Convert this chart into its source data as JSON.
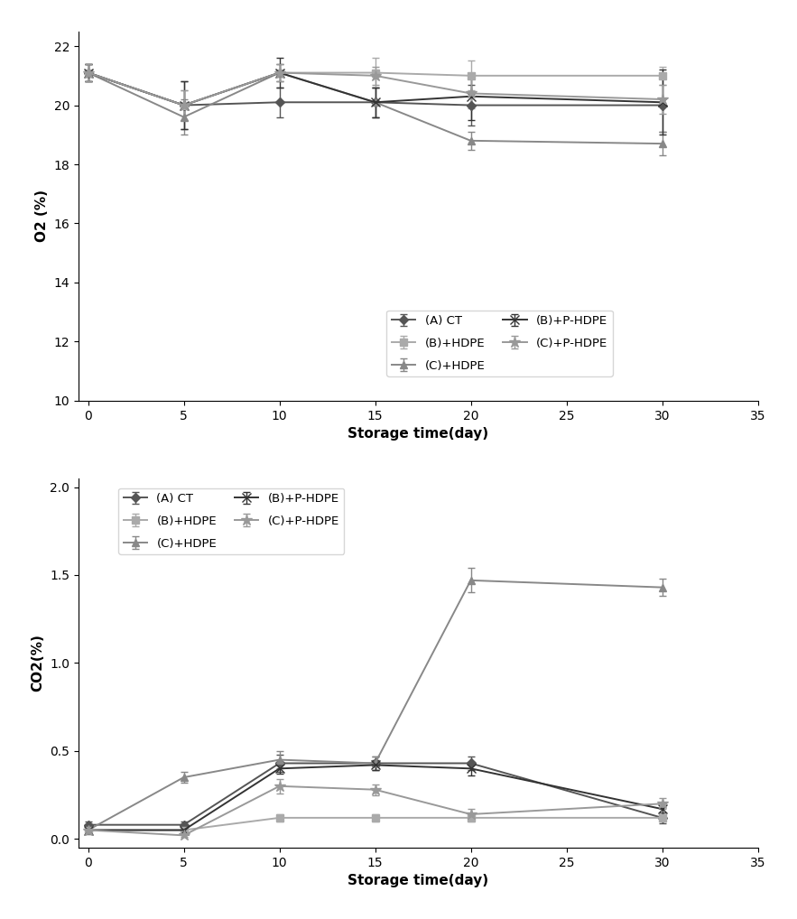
{
  "x": [
    0,
    5,
    10,
    15,
    20,
    30
  ],
  "o2": {
    "CT": [
      21.1,
      20.0,
      20.1,
      20.1,
      20.0,
      20.0
    ],
    "B_HDPE": [
      21.1,
      20.0,
      21.1,
      21.1,
      21.0,
      21.0
    ],
    "C_HDPE": [
      21.1,
      19.6,
      21.1,
      20.1,
      18.8,
      18.7
    ],
    "B_P_HDPE": [
      21.1,
      20.0,
      21.1,
      20.1,
      20.3,
      20.1
    ],
    "C_P_HDPE": [
      21.1,
      20.0,
      21.1,
      21.0,
      20.4,
      20.2
    ]
  },
  "o2_err": {
    "CT": [
      0.3,
      0.8,
      0.5,
      0.5,
      0.7,
      0.9
    ],
    "B_HDPE": [
      0.3,
      0.5,
      0.3,
      0.5,
      0.5,
      0.3
    ],
    "C_HDPE": [
      0.3,
      0.6,
      0.3,
      0.5,
      0.3,
      0.4
    ],
    "B_P_HDPE": [
      0.3,
      0.8,
      0.5,
      0.5,
      0.8,
      1.1
    ],
    "C_P_HDPE": [
      0.3,
      0.5,
      0.3,
      0.3,
      0.5,
      0.5
    ]
  },
  "co2": {
    "CT": [
      0.08,
      0.08,
      0.43,
      0.43,
      0.43,
      0.12
    ],
    "B_HDPE": [
      0.05,
      0.05,
      0.12,
      0.12,
      0.12,
      0.12
    ],
    "C_HDPE": [
      0.05,
      0.35,
      0.45,
      0.43,
      1.47,
      1.43
    ],
    "B_P_HDPE": [
      0.05,
      0.05,
      0.4,
      0.42,
      0.4,
      0.17
    ],
    "C_P_HDPE": [
      0.05,
      0.02,
      0.3,
      0.28,
      0.14,
      0.2
    ]
  },
  "co2_err": {
    "CT": [
      0.02,
      0.02,
      0.05,
      0.04,
      0.04,
      0.03
    ],
    "B_HDPE": [
      0.01,
      0.01,
      0.02,
      0.02,
      0.02,
      0.02
    ],
    "C_HDPE": [
      0.01,
      0.03,
      0.05,
      0.04,
      0.07,
      0.05
    ],
    "B_P_HDPE": [
      0.01,
      0.01,
      0.03,
      0.03,
      0.04,
      0.03
    ],
    "C_P_HDPE": [
      0.01,
      0.01,
      0.04,
      0.03,
      0.03,
      0.03
    ]
  },
  "colors": {
    "CT": "#555555",
    "B_HDPE": "#aaaaaa",
    "C_HDPE": "#888888",
    "B_P_HDPE": "#333333",
    "C_P_HDPE": "#999999"
  },
  "labels": {
    "CT": "(A) CT",
    "B_HDPE": "(B)+HDPE",
    "C_HDPE": "(C)+HDPE",
    "B_P_HDPE": "(B)+P-HDPE",
    "C_P_HDPE": "(C)+P-HDPE"
  },
  "markers": {
    "CT": "D",
    "B_HDPE": "s",
    "C_HDPE": "^",
    "B_P_HDPE": "x",
    "C_P_HDPE": "*"
  },
  "markersizes": {
    "CT": 5,
    "B_HDPE": 6,
    "C_HDPE": 6,
    "B_P_HDPE": 7,
    "C_P_HDPE": 9
  },
  "xlabel": "Storage time(day)",
  "o2_ylabel": "O2 (%)",
  "co2_ylabel": "CO2(%)",
  "o2_ylim": [
    10,
    22.5
  ],
  "co2_ylim": [
    -0.05,
    2.05
  ],
  "xlim": [
    -0.5,
    35
  ],
  "o2_yticks": [
    10,
    12,
    14,
    16,
    18,
    20,
    22
  ],
  "co2_yticks": [
    0,
    0.5,
    1.0,
    1.5,
    2.0
  ],
  "xticks": [
    0,
    5,
    10,
    15,
    20,
    25,
    30,
    35
  ]
}
